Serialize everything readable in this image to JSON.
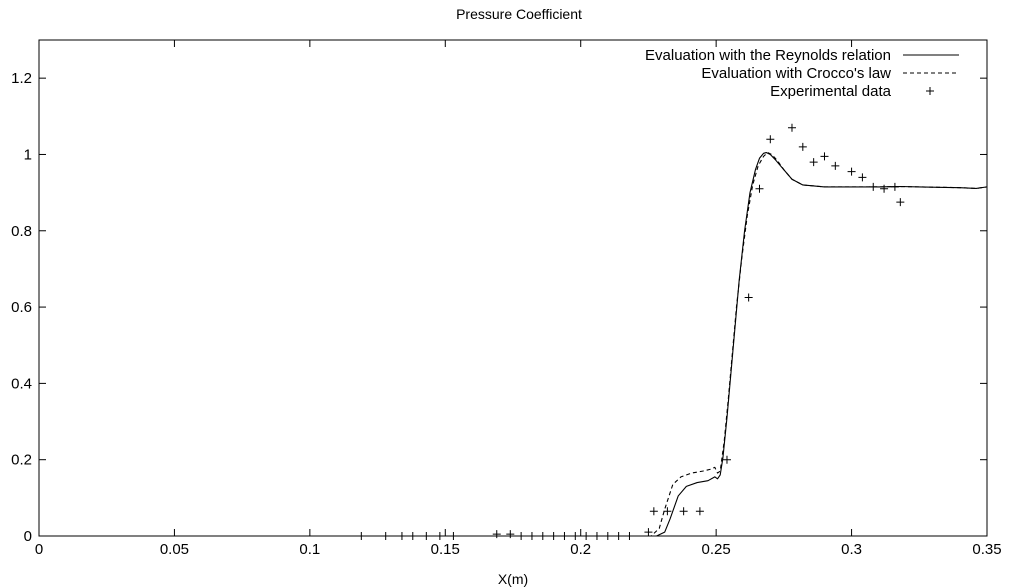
{
  "chart_data": {
    "type": "line",
    "title": "Pressure Coefficient",
    "xlabel": "X(m)",
    "ylabel": "",
    "xlim": [
      0,
      0.35
    ],
    "ylim": [
      0,
      1.3
    ],
    "grid": false,
    "legend_position": "top-right",
    "x_ticks": [
      "0",
      "0.05",
      "0.1",
      "0.15",
      "0.2",
      "0.25",
      "0.3",
      "0.35"
    ],
    "y_ticks": [
      "0",
      "0.2",
      "0.4",
      "0.6",
      "0.8",
      "1",
      "1.2"
    ],
    "series": [
      {
        "name": "Evaluation with the Reynolds relation",
        "style": "solid",
        "x": [
          0,
          0.1,
          0.2,
          0.228,
          0.231,
          0.233,
          0.236,
          0.239,
          0.243,
          0.247,
          0.2495,
          0.2505,
          0.2515,
          0.2525,
          0.254,
          0.2555,
          0.257,
          0.2585,
          0.2605,
          0.2625,
          0.2645,
          0.266,
          0.2675,
          0.2685,
          0.27,
          0.272,
          0.275,
          0.278,
          0.282,
          0.29,
          0.3,
          0.31,
          0.318,
          0.325,
          0.332,
          0.34,
          0.346,
          0.35
        ],
        "y": [
          0,
          0.0,
          0.0,
          0.0,
          0.01,
          0.045,
          0.105,
          0.13,
          0.14,
          0.145,
          0.155,
          0.15,
          0.16,
          0.205,
          0.31,
          0.43,
          0.55,
          0.67,
          0.8,
          0.9,
          0.96,
          0.99,
          1.003,
          1.005,
          1.0,
          0.985,
          0.96,
          0.935,
          0.92,
          0.915,
          0.915,
          0.915,
          0.916,
          0.915,
          0.914,
          0.913,
          0.911,
          0.915
        ]
      },
      {
        "name": "Evaluation with Crocco's law",
        "style": "dashed",
        "x": [
          0,
          0.1,
          0.2,
          0.226,
          0.229,
          0.231,
          0.234,
          0.237,
          0.241,
          0.245,
          0.248,
          0.2495,
          0.2505,
          0.2515,
          0.253,
          0.2545,
          0.256,
          0.2575,
          0.2595,
          0.2615,
          0.2635,
          0.2655,
          0.2675,
          0.269,
          0.2705,
          0.2725,
          0.275,
          0.278,
          0.282,
          0.29,
          0.3,
          0.31,
          0.318,
          0.325,
          0.332,
          0.34,
          0.346,
          0.35
        ],
        "y": [
          0,
          0.0,
          0.0,
          0.0,
          0.02,
          0.07,
          0.135,
          0.155,
          0.165,
          0.17,
          0.175,
          0.18,
          0.165,
          0.17,
          0.25,
          0.36,
          0.48,
          0.6,
          0.73,
          0.84,
          0.92,
          0.97,
          0.995,
          1.005,
          1.0,
          0.985,
          0.96,
          0.935,
          0.92,
          0.915,
          0.915,
          0.915,
          0.916,
          0.915,
          0.914,
          0.913,
          0.911,
          0.915
        ]
      },
      {
        "name": "Experimental data",
        "style": "markers",
        "x": [
          0.119,
          0.128,
          0.134,
          0.138,
          0.143,
          0.148,
          0.153,
          0.169,
          0.174,
          0.178,
          0.182,
          0.186,
          0.19,
          0.194,
          0.198,
          0.202,
          0.206,
          0.21,
          0.214,
          0.218,
          0.225,
          0.227,
          0.232,
          0.238,
          0.244,
          0.254,
          0.262,
          0.266,
          0.27,
          0.278,
          0.282,
          0.286,
          0.29,
          0.294,
          0.3,
          0.304,
          0.308,
          0.312,
          0.316,
          0.318
        ],
        "y": [
          0.0,
          0.0,
          0.0,
          0.0,
          0.0,
          0.0,
          0.0,
          0.005,
          0.005,
          0.0,
          0.0,
          0.0,
          0.0,
          0.0,
          0.0,
          0.0,
          0.0,
          0.0,
          0.0,
          0.0,
          0.01,
          0.065,
          0.065,
          0.065,
          0.065,
          0.2,
          0.625,
          0.91,
          1.04,
          1.07,
          1.02,
          0.98,
          0.995,
          0.97,
          0.955,
          0.94,
          0.915,
          0.91,
          0.915,
          0.875
        ]
      }
    ]
  }
}
